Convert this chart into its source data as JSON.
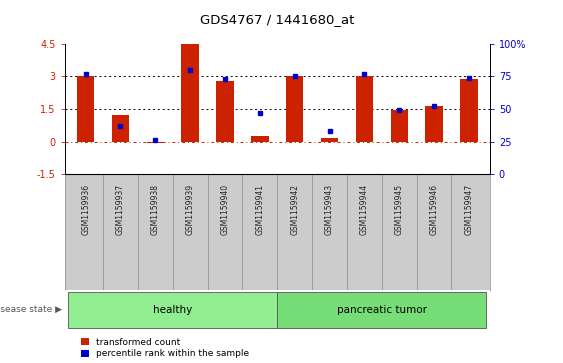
{
  "title": "GDS4767 / 1441680_at",
  "samples": [
    "GSM1159936",
    "GSM1159937",
    "GSM1159938",
    "GSM1159939",
    "GSM1159940",
    "GSM1159941",
    "GSM1159942",
    "GSM1159943",
    "GSM1159944",
    "GSM1159945",
    "GSM1159946",
    "GSM1159947"
  ],
  "red_values": [
    3.0,
    1.2,
    -0.05,
    4.5,
    2.8,
    0.25,
    3.0,
    0.15,
    3.0,
    1.45,
    1.65,
    2.85
  ],
  "blue_values": [
    3.1,
    0.7,
    0.05,
    3.3,
    2.85,
    1.3,
    3.0,
    0.5,
    3.1,
    1.45,
    1.65,
    2.9
  ],
  "ylim_left": [
    -1.5,
    4.5
  ],
  "yticks_left": [
    -1.5,
    0.0,
    1.5,
    3.0,
    4.5
  ],
  "ytick_labels_left": [
    "-1.5",
    "0",
    "1.5",
    "3",
    "4.5"
  ],
  "ylim_right": [
    0,
    100
  ],
  "yticks_right": [
    0,
    25,
    50,
    75,
    100
  ],
  "ytick_labels_right": [
    "0",
    "25",
    "50",
    "75",
    "100%"
  ],
  "disease_groups": [
    {
      "label": "healthy",
      "start": 0,
      "end": 5,
      "color": "#90ee90"
    },
    {
      "label": "pancreatic tumor",
      "start": 6,
      "end": 11,
      "color": "#77dd77"
    }
  ],
  "disease_state_label": "disease state",
  "bar_width": 0.5,
  "red_color": "#cc2200",
  "blue_color": "#0000cc",
  "legend_items": [
    "transformed count",
    "percentile rank within the sample"
  ],
  "axis_left_color": "#cc2200",
  "axis_right_color": "#0000cc",
  "bg_color": "#ffffff",
  "tick_label_area_color": "#cccccc"
}
